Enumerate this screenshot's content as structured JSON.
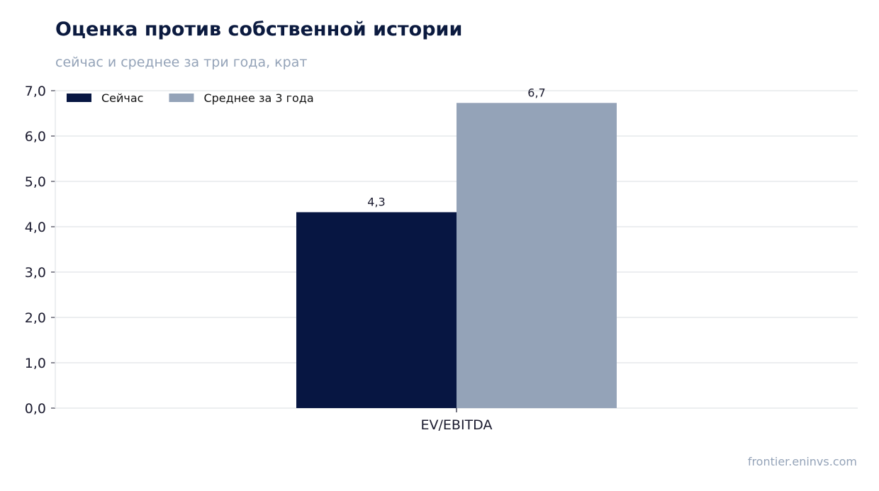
{
  "title": "Оценка против собственной истории",
  "subtitle": "сейчас и среднее за три года, крат",
  "source": "frontier.eninvs.com",
  "colors": {
    "now": "#071642",
    "avg": "#94a3b8",
    "grid": "#e6e8ec",
    "axis": "#1a1a2e"
  },
  "chart_data": {
    "type": "bar",
    "categories": [
      "EV/EBITDA"
    ],
    "series": [
      {
        "name": "Сейчас",
        "values": [
          4.32
        ],
        "label": "4,3"
      },
      {
        "name": "Среднее за 3 года",
        "values": [
          6.73
        ],
        "label": "6,7"
      }
    ],
    "yticks": [
      "0,0",
      "1,0",
      "2,0",
      "3,0",
      "4,0",
      "5,0",
      "6,0",
      "7,0"
    ],
    "ylim": [
      0,
      7
    ],
    "grid": true,
    "legend_position": "top-left"
  }
}
